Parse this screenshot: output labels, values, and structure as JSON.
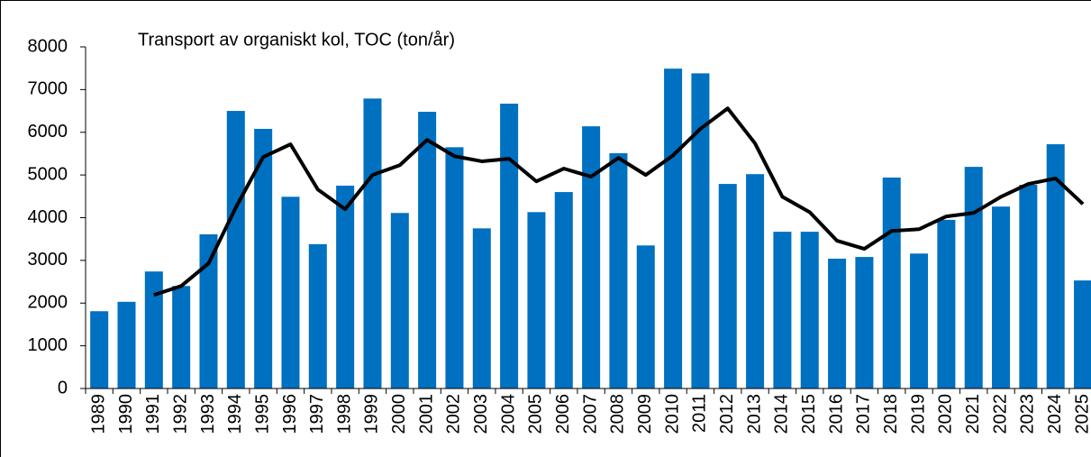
{
  "chart_data": {
    "type": "bar_line",
    "title": "Transport av organiskt kol, TOC (ton/år)",
    "categories": [
      "1989",
      "1990",
      "1991",
      "1992",
      "1993",
      "1994",
      "1995",
      "1996",
      "1997",
      "1998",
      "1999",
      "2000",
      "2001",
      "2002",
      "2003",
      "2004",
      "2005",
      "2006",
      "2007",
      "2008",
      "2009",
      "2010",
      "2011",
      "2012",
      "2013",
      "2014",
      "2015",
      "2016",
      "2017",
      "2018",
      "2019",
      "2020",
      "2021",
      "2022",
      "2023",
      "2024",
      "2025"
    ],
    "series": [
      {
        "type": "bar",
        "color": "#0070c0",
        "values": [
          1810,
          2030,
          2740,
          2400,
          3610,
          6500,
          6080,
          4490,
          3380,
          4750,
          6790,
          4110,
          6480,
          5650,
          3750,
          6670,
          4130,
          4600,
          6140,
          5510,
          3350,
          7490,
          7380,
          4790,
          5020,
          3670,
          3670,
          3040,
          3080,
          4940,
          3160,
          3950,
          5190,
          4260,
          4770,
          5720,
          2530
        ]
      },
      {
        "type": "line",
        "color": "#000000",
        "values": [
          null,
          null,
          2190,
          2400,
          2930,
          4240,
          5420,
          5720,
          4660,
          4200,
          5000,
          5230,
          5820,
          5440,
          5320,
          5380,
          4850,
          5150,
          4960,
          5400,
          5000,
          5460,
          6080,
          6560,
          5740,
          4490,
          4130,
          3460,
          3270,
          3690,
          3730,
          4030,
          4110,
          4490,
          4790,
          4920,
          4320
        ]
      }
    ],
    "ylim": [
      0,
      8000
    ],
    "yticks": [
      0,
      1000,
      2000,
      3000,
      4000,
      5000,
      6000,
      7000,
      8000
    ],
    "grid": false
  }
}
